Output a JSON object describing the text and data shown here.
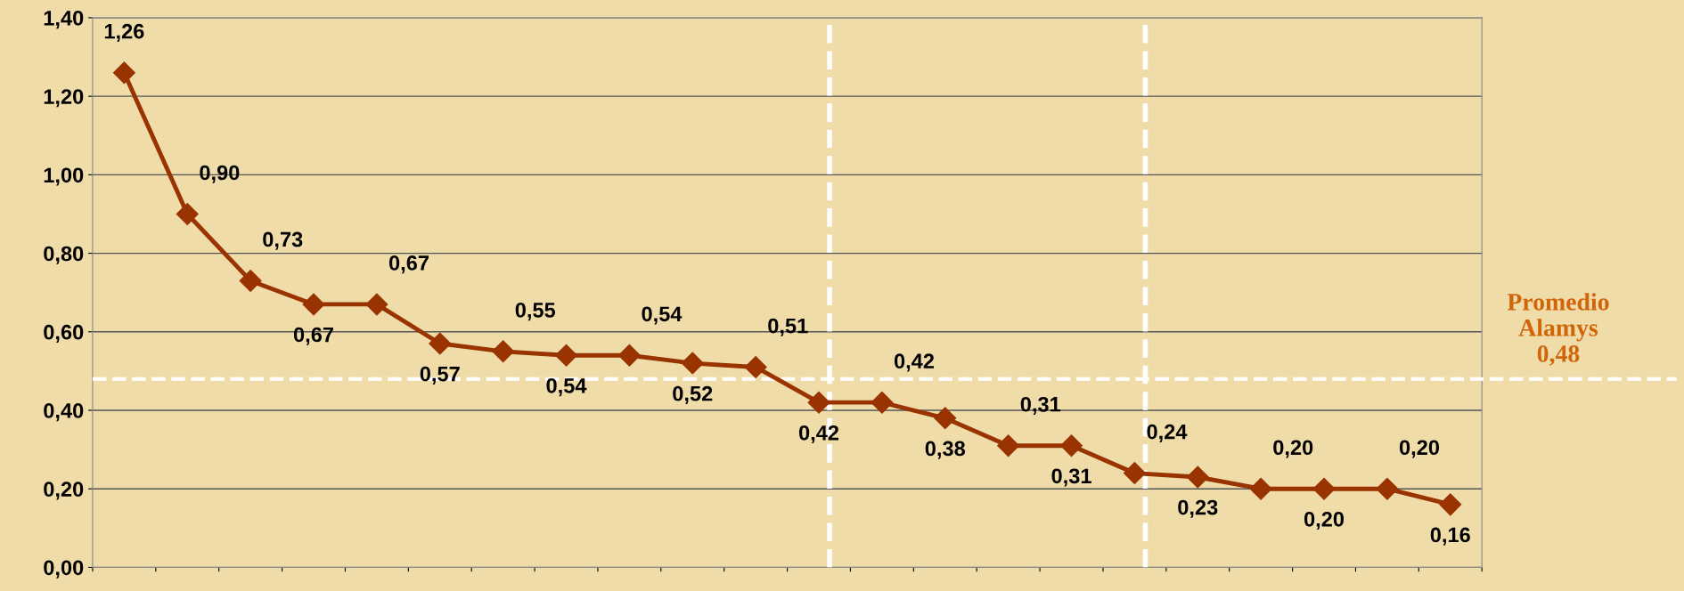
{
  "chart_data": {
    "type": "line",
    "categories": [
      null,
      null,
      null,
      null,
      null,
      null,
      null,
      null,
      null,
      null,
      null,
      null,
      null,
      null,
      null,
      null,
      null,
      null,
      null,
      null,
      null,
      null
    ],
    "series": [
      {
        "color": "#993300",
        "values": [
          1.26,
          0.9,
          0.73,
          0.67,
          0.67,
          0.57,
          0.55,
          0.54,
          0.54,
          0.52,
          0.51,
          0.42,
          0.42,
          0.38,
          0.31,
          0.31,
          0.24,
          0.23,
          0.2,
          0.2,
          0.2,
          0.16
        ],
        "value_labels": [
          "1,26",
          "0,90",
          "0,73",
          "0,67",
          "0,67",
          "0,57",
          "0,55",
          "0,54",
          "0,54",
          "0,52",
          "0,51",
          "0,42",
          "0,42",
          "0,38",
          "0,31",
          "0,31",
          "0,24",
          "0,23",
          "0,20",
          "0,20",
          "0,20",
          "0,16"
        ]
      }
    ],
    "ylim": [
      0,
      1.4
    ],
    "yticks": [
      {
        "value": 0,
        "label": "0,00"
      },
      {
        "value": 0.2,
        "label": "0,20"
      },
      {
        "value": 0.4,
        "label": "0,40"
      },
      {
        "value": 0.6,
        "label": "0,60"
      },
      {
        "value": 0.8,
        "label": "0,80"
      },
      {
        "value": 1.0,
        "label": "1,00"
      },
      {
        "value": 1.2,
        "label": "1,20"
      },
      {
        "value": 1.4,
        "label": "1,40"
      }
    ],
    "grid": "y",
    "marker": "diamond",
    "line_style": "solid",
    "legend": false,
    "ref_lines": [
      {
        "axis": "y",
        "value": 0.48,
        "label": "Promedio\nAlamys\n0,48",
        "color": "#ffffff",
        "line_style": "dashed"
      }
    ]
  }
}
